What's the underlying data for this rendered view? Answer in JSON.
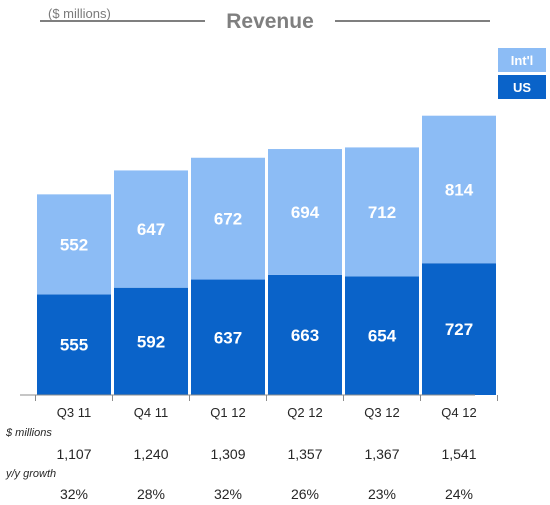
{
  "chart_data": {
    "type": "bar",
    "stacked": true,
    "title": "Revenue",
    "units": "($ millions)",
    "categories": [
      "Q3 11",
      "Q4 11",
      "Q1 12",
      "Q2 12",
      "Q3 12",
      "Q4 12"
    ],
    "series": [
      {
        "name": "US",
        "values": [
          555,
          592,
          637,
          663,
          654,
          727
        ]
      },
      {
        "name": "Int'l",
        "values": [
          552,
          647,
          672,
          694,
          712,
          814
        ]
      }
    ],
    "ylim": [
      0,
      1600
    ],
    "grid": false,
    "legend_position": "top-right",
    "colors": {
      "US": "#0a63c9",
      "Int'l": "#8cbcf5"
    },
    "tables": [
      {
        "label": "$ millions",
        "values": [
          "1,107",
          "1,240",
          "1,309",
          "1,357",
          "1,367",
          "1,541"
        ]
      },
      {
        "label": "y/y growth",
        "values": [
          "32%",
          "28%",
          "32%",
          "26%",
          "23%",
          "24%"
        ]
      }
    ]
  }
}
